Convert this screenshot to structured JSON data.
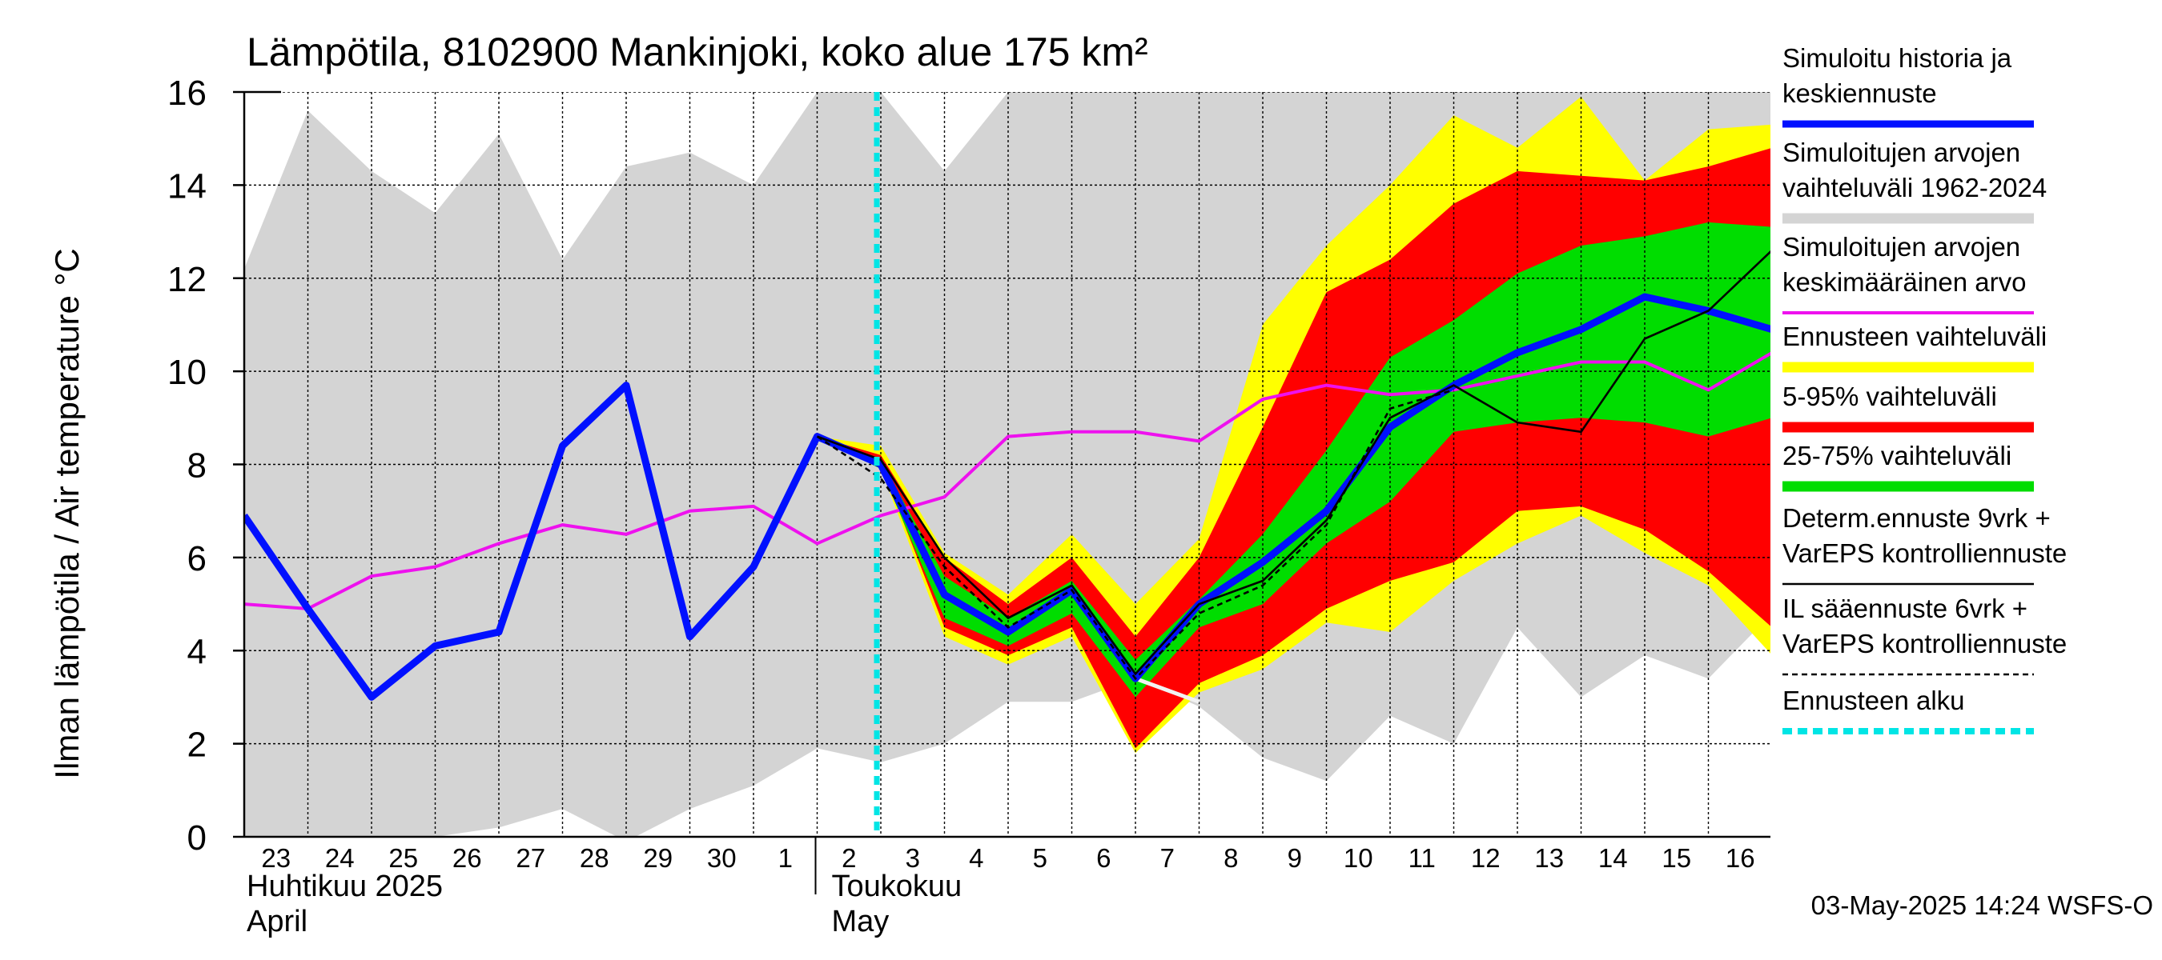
{
  "chart_data": {
    "type": "line",
    "title": "Lämpötila, 8102900 Mankinjoki, koko alue 175 km²",
    "ylabel": "Ilman lämpötila / Air temperature    °C",
    "ylim": [
      0,
      16
    ],
    "yticks": [
      0,
      2,
      4,
      6,
      8,
      10,
      12,
      14,
      16
    ],
    "grid": true,
    "legend_position": "right",
    "x_start_date": "2025-04-23",
    "x_end_date": "2025-05-16",
    "x_range": [
      "2025-04-23T00:00",
      "2025-05-17T00:00"
    ],
    "x_tick_labels": [
      "23",
      "24",
      "25",
      "26",
      "27",
      "28",
      "29",
      "30",
      "1",
      "2",
      "3",
      "4",
      "5",
      "6",
      "7",
      "8",
      "9",
      "10",
      "11",
      "12",
      "13",
      "14",
      "15",
      "16"
    ],
    "month_labels": [
      {
        "fi": "Huhtikuu  2025",
        "en": "April",
        "date": "2025-04-23"
      },
      {
        "fi": "Toukokuu",
        "en": "May",
        "date": "2025-05-02"
      }
    ],
    "forecast_start": "2025-05-03T00:00",
    "footer": "03-May-2025 14:24 WSFS-O",
    "legend": [
      {
        "label_lines": [
          "Simuloitu historia ja",
          "keskiennuste"
        ],
        "color": "#0010ff",
        "style": "thick"
      },
      {
        "label_lines": [
          "Simuloitujen arvojen",
          "vaihteluväli 1962-2024"
        ],
        "color": "#d4d4d4",
        "style": "band"
      },
      {
        "label_lines": [
          "Simuloitujen arvojen",
          "keskimääräinen arvo"
        ],
        "color": "#ee11ee",
        "style": "line"
      },
      {
        "label_lines": [
          "Ennusteen vaihteluväli"
        ],
        "color": "#ffff00",
        "style": "band"
      },
      {
        "label_lines": [
          "5-95% vaihteluväli"
        ],
        "color": "#ff0000",
        "style": "band"
      },
      {
        "label_lines": [
          "25-75% vaihteluväli"
        ],
        "color": "#00dd00",
        "style": "band"
      },
      {
        "label_lines": [
          "Determ.ennuste 9vrk +",
          "VarEPS kontrolliennuste"
        ],
        "color": "#000000",
        "style": "line"
      },
      {
        "label_lines": [
          "IL sääennuste 6vrk  +",
          "  VarEPS kontrolliennuste"
        ],
        "color": "#000000",
        "style": "dashed"
      },
      {
        "label_lines": [
          "Ennusteen alku"
        ],
        "color": "#00e5e5",
        "style": "dotted"
      }
    ],
    "series": {
      "hist_range": {
        "name": "Simuloitujen arvojen vaihteluväli 1962-2024",
        "x": [
          "2025-04-23",
          "2025-04-24",
          "2025-04-25",
          "2025-04-26",
          "2025-04-27",
          "2025-04-28",
          "2025-04-29",
          "2025-04-30",
          "2025-05-01",
          "2025-05-02",
          "2025-05-03",
          "2025-05-04",
          "2025-05-05",
          "2025-05-06",
          "2025-05-07",
          "2025-05-08",
          "2025-05-09",
          "2025-05-10",
          "2025-05-11",
          "2025-05-12",
          "2025-05-13",
          "2025-05-14",
          "2025-05-15",
          "2025-05-16",
          "2025-05-17"
        ],
        "upper": [
          12.2,
          15.6,
          14.3,
          13.4,
          15.1,
          12.4,
          14.4,
          14.7,
          14.0,
          16.0,
          16.0,
          14.3,
          16.0,
          16.0,
          16.0,
          16.0,
          16.0,
          16.0,
          16.0,
          16.0,
          16.0,
          16.0,
          16.0,
          16.0,
          16.0
        ],
        "lower": [
          0.0,
          0.0,
          0.0,
          0.0,
          0.2,
          0.6,
          -0.1,
          0.6,
          1.1,
          1.9,
          1.6,
          2.0,
          2.9,
          2.9,
          3.4,
          2.8,
          1.7,
          1.2,
          2.6,
          2.0,
          4.5,
          3.0,
          3.9,
          3.4,
          4.8
        ]
      },
      "hist_mean": {
        "name": "Simuloitujen arvojen keskimääräinen arvo",
        "x": [
          "2025-04-23",
          "2025-04-24",
          "2025-04-25",
          "2025-04-26",
          "2025-04-27",
          "2025-04-28",
          "2025-04-29",
          "2025-04-30",
          "2025-05-01",
          "2025-05-02",
          "2025-05-03",
          "2025-05-04",
          "2025-05-05",
          "2025-05-06",
          "2025-05-07",
          "2025-05-08",
          "2025-05-09",
          "2025-05-10",
          "2025-05-11",
          "2025-05-12",
          "2025-05-13",
          "2025-05-14",
          "2025-05-15",
          "2025-05-16",
          "2025-05-17"
        ],
        "y": [
          5.0,
          4.9,
          5.6,
          5.8,
          6.3,
          6.7,
          6.5,
          7.0,
          7.1,
          6.3,
          6.9,
          7.3,
          8.6,
          8.7,
          8.7,
          8.5,
          9.4,
          9.7,
          9.5,
          9.6,
          9.9,
          10.2,
          10.2,
          9.6,
          10.4
        ]
      },
      "forecast_range": {
        "name": "Ennusteen vaihteluväli",
        "x": [
          "2025-05-02",
          "2025-05-03",
          "2025-05-04",
          "2025-05-05",
          "2025-05-06",
          "2025-05-07",
          "2025-05-08",
          "2025-05-09",
          "2025-05-10",
          "2025-05-11",
          "2025-05-12",
          "2025-05-13",
          "2025-05-14",
          "2025-05-15",
          "2025-05-16",
          "2025-05-17"
        ],
        "upper": [
          8.6,
          8.4,
          6.1,
          5.2,
          6.5,
          5.0,
          6.4,
          11.0,
          12.7,
          14.0,
          15.5,
          14.8,
          15.9,
          14.1,
          15.2,
          15.3
        ],
        "lower": [
          8.6,
          7.9,
          4.3,
          3.7,
          4.3,
          1.8,
          3.1,
          3.6,
          4.6,
          4.4,
          5.5,
          6.3,
          6.9,
          6.1,
          5.4,
          3.9
        ]
      },
      "p5_95": {
        "name": "5-95% vaihteluväli",
        "x": [
          "2025-05-02",
          "2025-05-03",
          "2025-05-04",
          "2025-05-05",
          "2025-05-06",
          "2025-05-07",
          "2025-05-08",
          "2025-05-09",
          "2025-05-10",
          "2025-05-11",
          "2025-05-12",
          "2025-05-13",
          "2025-05-14",
          "2025-05-15",
          "2025-05-16",
          "2025-05-17"
        ],
        "upper": [
          8.6,
          8.2,
          6.0,
          5.0,
          6.0,
          4.3,
          6.0,
          8.8,
          11.7,
          12.4,
          13.6,
          14.3,
          14.2,
          14.1,
          14.4,
          14.8
        ],
        "lower": [
          8.6,
          8.0,
          4.5,
          3.9,
          4.5,
          1.9,
          3.3,
          3.9,
          4.9,
          5.5,
          5.9,
          7.0,
          7.1,
          6.6,
          5.7,
          4.5
        ]
      },
      "p25_75": {
        "name": "25-75% vaihteluväli",
        "x": [
          "2025-05-02",
          "2025-05-03",
          "2025-05-04",
          "2025-05-05",
          "2025-05-06",
          "2025-05-07",
          "2025-05-08",
          "2025-05-09",
          "2025-05-10",
          "2025-05-11",
          "2025-05-12",
          "2025-05-13",
          "2025-05-14",
          "2025-05-15",
          "2025-05-16",
          "2025-05-17"
        ],
        "upper": [
          8.6,
          8.1,
          5.6,
          4.7,
          5.5,
          3.8,
          5.1,
          6.5,
          8.3,
          10.3,
          11.1,
          12.1,
          12.7,
          12.9,
          13.2,
          13.1
        ],
        "lower": [
          8.6,
          7.9,
          4.7,
          4.1,
          4.8,
          3.0,
          4.5,
          5.0,
          6.3,
          7.2,
          8.7,
          8.9,
          9.0,
          8.9,
          8.6,
          9.0
        ]
      },
      "history_and_forecast": {
        "name": "Simuloitu historia ja keskiennuste",
        "x": [
          "2025-04-23",
          "2025-04-24",
          "2025-04-25",
          "2025-04-26",
          "2025-04-27",
          "2025-04-28",
          "2025-04-29",
          "2025-04-30",
          "2025-05-01",
          "2025-05-02",
          "2025-05-03",
          "2025-05-04",
          "2025-05-05",
          "2025-05-06",
          "2025-05-07",
          "2025-05-08",
          "2025-05-09",
          "2025-05-10",
          "2025-05-11",
          "2025-05-12",
          "2025-05-13",
          "2025-05-14",
          "2025-05-15",
          "2025-05-16",
          "2025-05-17"
        ],
        "y": [
          6.9,
          4.9,
          3.0,
          4.1,
          4.4,
          8.4,
          9.7,
          4.3,
          5.8,
          8.6,
          8.0,
          5.2,
          4.4,
          5.3,
          3.4,
          5.0,
          5.9,
          7.0,
          8.8,
          9.7,
          10.4,
          10.9,
          11.6,
          11.3,
          10.9
        ]
      },
      "determ_forecast": {
        "name": "Determ.ennuste 9vrk + VarEPS kontrolliennuste",
        "x": [
          "2025-05-02",
          "2025-05-03",
          "2025-05-04",
          "2025-05-05",
          "2025-05-06",
          "2025-05-07",
          "2025-05-08",
          "2025-05-09",
          "2025-05-10",
          "2025-05-11",
          "2025-05-12",
          "2025-05-13",
          "2025-05-14",
          "2025-05-15",
          "2025-05-16",
          "2025-05-17"
        ],
        "y": [
          8.6,
          8.1,
          6.0,
          4.7,
          5.4,
          3.5,
          5.0,
          5.5,
          6.8,
          9.0,
          9.7,
          8.9,
          8.7,
          10.7,
          11.3,
          12.6
        ]
      },
      "il_forecast": {
        "name": "IL sääennuste 6vrk + VarEPS kontrolliennuste",
        "x": [
          "2025-05-02",
          "2025-05-03",
          "2025-05-04",
          "2025-05-05",
          "2025-05-06",
          "2025-05-07",
          "2025-05-08",
          "2025-05-09",
          "2025-05-10",
          "2025-05-11",
          "2025-05-12"
        ],
        "y": [
          8.6,
          7.7,
          5.8,
          4.5,
          5.3,
          3.4,
          4.8,
          5.4,
          6.7,
          9.2,
          9.6
        ]
      },
      "white_segment": {
        "x": [
          "2025-05-07",
          "2025-05-08"
        ],
        "y": [
          3.4,
          2.9
        ]
      }
    }
  }
}
